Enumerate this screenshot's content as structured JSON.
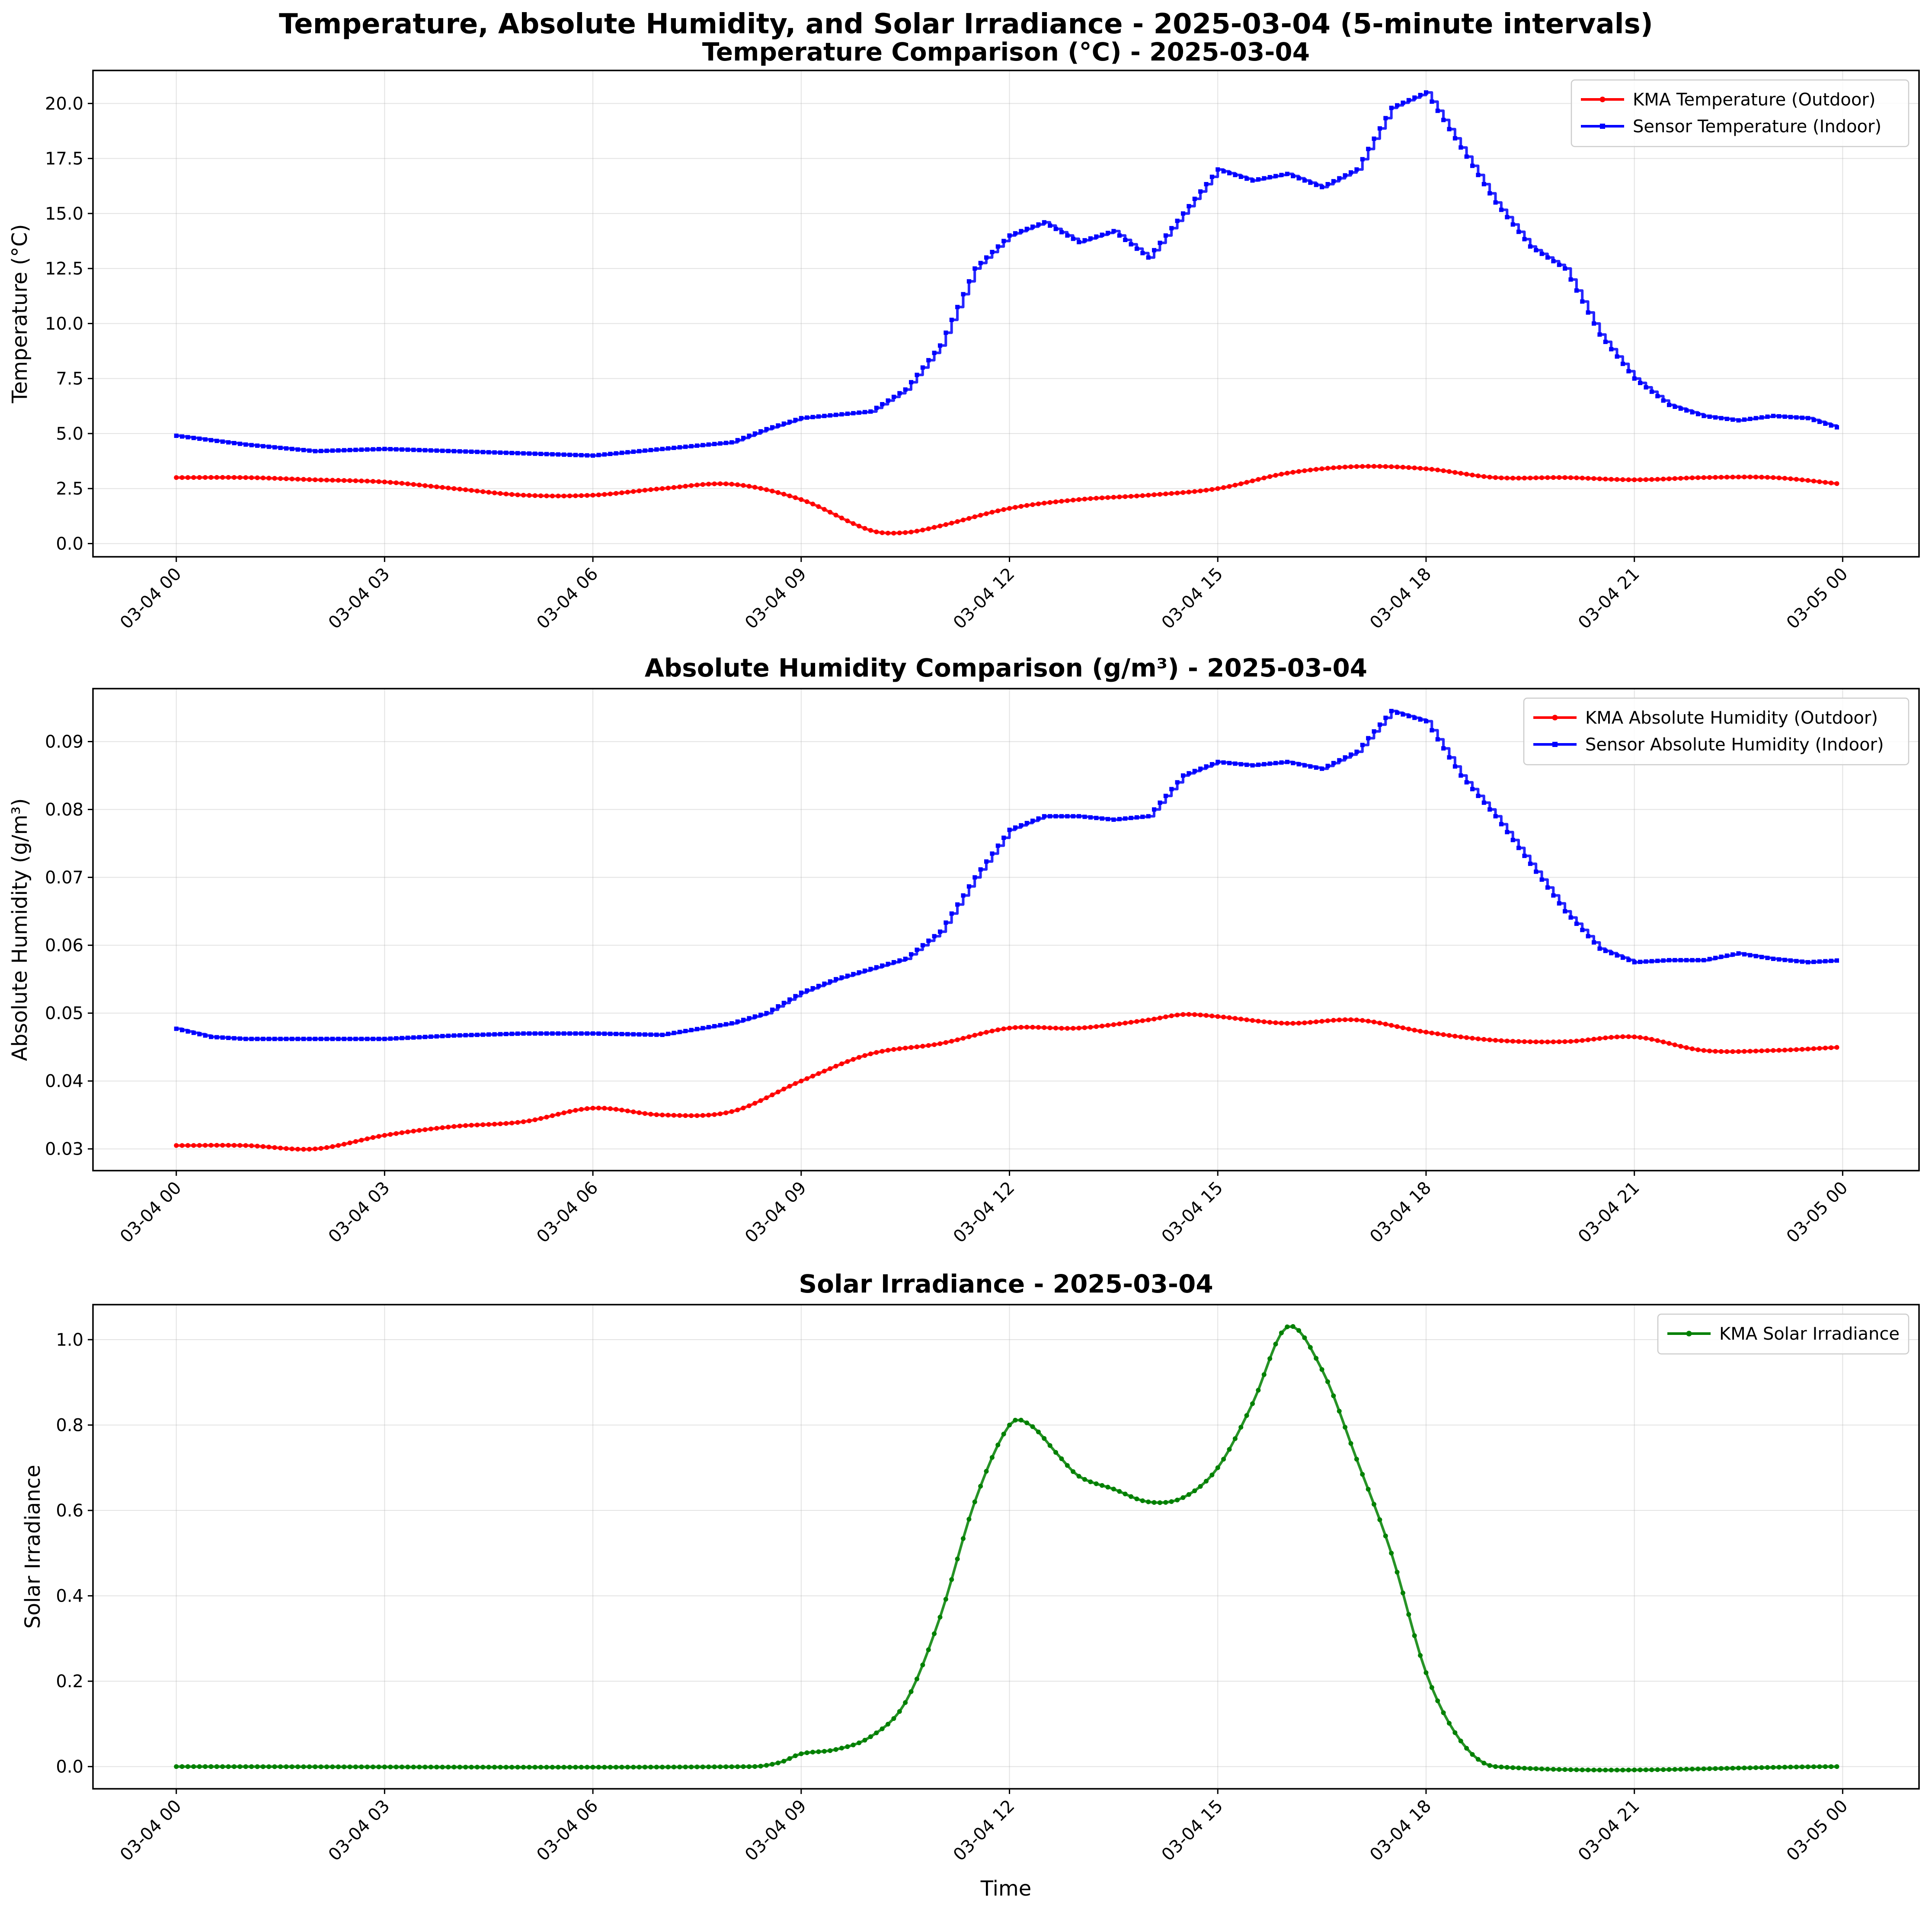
{
  "figure": {
    "title": "Temperature, Absolute Humidity, and Solar Irradiance - 2025-03-04 (5-minute intervals)"
  },
  "chart_data": [
    {
      "type": "line",
      "title": "Temperature Comparison (°C) - 2025-03-04",
      "xlabel": "",
      "ylabel": "Temperature (°C)",
      "x_unit": "hours",
      "x_tick_labels": [
        "03-04 00",
        "03-04 03",
        "03-04 06",
        "03-04 09",
        "03-04 12",
        "03-04 15",
        "03-04 18",
        "03-04 21",
        "03-05 00"
      ],
      "x_ticks": [
        0,
        3,
        6,
        9,
        12,
        15,
        18,
        21,
        24
      ],
      "xlim": [
        -1.2,
        25.1
      ],
      "ylim": [
        -0.6,
        21.5
      ],
      "y_ticks": [
        0.0,
        2.5,
        5.0,
        7.5,
        10.0,
        12.5,
        15.0,
        17.5,
        20.0
      ],
      "y_tick_labels": [
        "0.0",
        "2.5",
        "5.0",
        "7.5",
        "10.0",
        "12.5",
        "15.0",
        "17.5",
        "20.0"
      ],
      "grid": true,
      "legend_position": "top-right",
      "series": [
        {
          "name": "KMA Temperature (Outdoor)",
          "color": "#ff0000",
          "marker": "circle",
          "interpolation": "smooth",
          "points": [
            [
              0,
              3.0
            ],
            [
              1,
              3.0
            ],
            [
              2,
              2.9
            ],
            [
              3,
              2.8
            ],
            [
              4,
              2.5
            ],
            [
              5,
              2.2
            ],
            [
              6,
              2.2
            ],
            [
              7,
              2.5
            ],
            [
              8,
              2.7
            ],
            [
              9,
              2.0
            ],
            [
              10,
              0.6
            ],
            [
              10.5,
              0.5
            ],
            [
              11,
              0.8
            ],
            [
              12,
              1.6
            ],
            [
              13,
              2.0
            ],
            [
              14,
              2.2
            ],
            [
              15,
              2.5
            ],
            [
              16,
              3.2
            ],
            [
              17,
              3.5
            ],
            [
              18,
              3.4
            ],
            [
              19,
              3.0
            ],
            [
              20,
              3.0
            ],
            [
              21,
              2.9
            ],
            [
              22,
              3.0
            ],
            [
              23,
              3.0
            ],
            [
              24,
              2.7
            ]
          ]
        },
        {
          "name": "Sensor Temperature (Indoor)",
          "color": "#0000ff",
          "marker": "square",
          "interpolation": "step",
          "points": [
            [
              0,
              4.9
            ],
            [
              0.5,
              4.7
            ],
            [
              1,
              4.5
            ],
            [
              2,
              4.2
            ],
            [
              3,
              4.3
            ],
            [
              4,
              4.2
            ],
            [
              5,
              4.1
            ],
            [
              6,
              4.0
            ],
            [
              7,
              4.3
            ],
            [
              8,
              4.6
            ],
            [
              8.5,
              5.2
            ],
            [
              9,
              5.7
            ],
            [
              10,
              6.0
            ],
            [
              10.5,
              7.0
            ],
            [
              11,
              9.0
            ],
            [
              11.5,
              12.5
            ],
            [
              12,
              14.0
            ],
            [
              12.5,
              14.6
            ],
            [
              13,
              13.7
            ],
            [
              13.5,
              14.2
            ],
            [
              14,
              13.0
            ],
            [
              14.5,
              15.0
            ],
            [
              15,
              17.0
            ],
            [
              15.5,
              16.5
            ],
            [
              16,
              16.8
            ],
            [
              16.5,
              16.2
            ],
            [
              17,
              17.0
            ],
            [
              17.5,
              19.8
            ],
            [
              18,
              20.5
            ],
            [
              18.5,
              18.0
            ],
            [
              19,
              15.5
            ],
            [
              19.5,
              13.5
            ],
            [
              20,
              12.5
            ],
            [
              20.5,
              9.5
            ],
            [
              21,
              7.5
            ],
            [
              21.5,
              6.3
            ],
            [
              22,
              5.8
            ],
            [
              22.5,
              5.6
            ],
            [
              23,
              5.8
            ],
            [
              23.5,
              5.7
            ],
            [
              24,
              5.2
            ]
          ]
        }
      ]
    },
    {
      "type": "line",
      "title": "Absolute Humidity Comparison (g/m³) - 2025-03-04",
      "xlabel": "",
      "ylabel": "Absolute Humidity (g/m³)",
      "x_unit": "hours",
      "x_tick_labels": [
        "03-04 00",
        "03-04 03",
        "03-04 06",
        "03-04 09",
        "03-04 12",
        "03-04 15",
        "03-04 18",
        "03-04 21",
        "03-05 00"
      ],
      "x_ticks": [
        0,
        3,
        6,
        9,
        12,
        15,
        18,
        21,
        24
      ],
      "xlim": [
        -1.2,
        25.1
      ],
      "ylim": [
        0.0268,
        0.0978
      ],
      "y_ticks": [
        0.03,
        0.04,
        0.05,
        0.06,
        0.07,
        0.08,
        0.09
      ],
      "y_tick_labels": [
        "0.03",
        "0.04",
        "0.05",
        "0.06",
        "0.07",
        "0.08",
        "0.09"
      ],
      "grid": true,
      "legend_position": "top-right",
      "series": [
        {
          "name": "KMA Absolute Humidity (Outdoor)",
          "color": "#ff0000",
          "marker": "circle",
          "interpolation": "smooth",
          "points": [
            [
              0,
              0.0305
            ],
            [
              1,
              0.0305
            ],
            [
              2,
              0.03
            ],
            [
              3,
              0.032
            ],
            [
              4,
              0.0333
            ],
            [
              5,
              0.034
            ],
            [
              6,
              0.036
            ],
            [
              7,
              0.035
            ],
            [
              8,
              0.0355
            ],
            [
              9,
              0.04
            ],
            [
              10,
              0.044
            ],
            [
              11,
              0.0455
            ],
            [
              12,
              0.0478
            ],
            [
              13,
              0.0478
            ],
            [
              14,
              0.049
            ],
            [
              14.5,
              0.0498
            ],
            [
              15,
              0.0495
            ],
            [
              16,
              0.0485
            ],
            [
              17,
              0.049
            ],
            [
              18,
              0.0472
            ],
            [
              19,
              0.046
            ],
            [
              20,
              0.0458
            ],
            [
              21,
              0.0465
            ],
            [
              22,
              0.0445
            ],
            [
              23,
              0.0445
            ],
            [
              24,
              0.045
            ]
          ]
        },
        {
          "name": "Sensor Absolute Humidity (Indoor)",
          "color": "#0000ff",
          "marker": "square",
          "interpolation": "step",
          "points": [
            [
              0,
              0.0477
            ],
            [
              0.5,
              0.0465
            ],
            [
              1,
              0.0462
            ],
            [
              2,
              0.0462
            ],
            [
              3,
              0.0462
            ],
            [
              4,
              0.0467
            ],
            [
              5,
              0.047
            ],
            [
              6,
              0.047
            ],
            [
              7,
              0.0468
            ],
            [
              8,
              0.0485
            ],
            [
              8.5,
              0.05
            ],
            [
              9,
              0.053
            ],
            [
              9.5,
              0.055
            ],
            [
              10,
              0.0565
            ],
            [
              10.5,
              0.058
            ],
            [
              11,
              0.062
            ],
            [
              11.5,
              0.07
            ],
            [
              12,
              0.077
            ],
            [
              12.5,
              0.079
            ],
            [
              13,
              0.079
            ],
            [
              13.5,
              0.0785
            ],
            [
              14,
              0.079
            ],
            [
              14.5,
              0.085
            ],
            [
              15,
              0.087
            ],
            [
              15.5,
              0.0865
            ],
            [
              16,
              0.087
            ],
            [
              16.5,
              0.086
            ],
            [
              17,
              0.0885
            ],
            [
              17.5,
              0.0945
            ],
            [
              18,
              0.093
            ],
            [
              18.5,
              0.085
            ],
            [
              19,
              0.079
            ],
            [
              19.5,
              0.072
            ],
            [
              20,
              0.065
            ],
            [
              20.5,
              0.0595
            ],
            [
              21,
              0.0575
            ],
            [
              21.5,
              0.0578
            ],
            [
              22,
              0.0578
            ],
            [
              22.5,
              0.0588
            ],
            [
              23,
              0.058
            ],
            [
              23.5,
              0.0575
            ],
            [
              24,
              0.0578
            ]
          ]
        }
      ]
    },
    {
      "type": "line",
      "title": "Solar Irradiance - 2025-03-04",
      "xlabel": "Time",
      "ylabel": "Solar Irradiance",
      "x_unit": "hours",
      "x_tick_labels": [
        "03-04 00",
        "03-04 03",
        "03-04 06",
        "03-04 09",
        "03-04 12",
        "03-04 15",
        "03-04 18",
        "03-04 21",
        "03-05 00"
      ],
      "x_ticks": [
        0,
        3,
        6,
        9,
        12,
        15,
        18,
        21,
        24
      ],
      "xlim": [
        -1.2,
        25.1
      ],
      "ylim": [
        -0.052,
        1.082
      ],
      "y_ticks": [
        0.0,
        0.2,
        0.4,
        0.6,
        0.8,
        1.0
      ],
      "y_tick_labels": [
        "0.0",
        "0.2",
        "0.4",
        "0.6",
        "0.8",
        "1.0"
      ],
      "grid": true,
      "legend_position": "top-right",
      "series": [
        {
          "name": "KMA Solar Irradiance",
          "color": "#008000",
          "marker": "circle",
          "interpolation": "smooth",
          "points": [
            [
              0,
              0
            ],
            [
              8.3,
              0
            ],
            [
              8.7,
              0.01
            ],
            [
              9,
              0.03
            ],
            [
              9.5,
              0.04
            ],
            [
              10,
              0.07
            ],
            [
              10.5,
              0.15
            ],
            [
              11,
              0.35
            ],
            [
              11.5,
              0.62
            ],
            [
              12,
              0.8
            ],
            [
              12.3,
              0.8
            ],
            [
              12.7,
              0.73
            ],
            [
              13,
              0.68
            ],
            [
              13.5,
              0.65
            ],
            [
              14,
              0.62
            ],
            [
              14.5,
              0.63
            ],
            [
              15,
              0.7
            ],
            [
              15.5,
              0.85
            ],
            [
              16,
              1.03
            ],
            [
              16.5,
              0.93
            ],
            [
              17,
              0.72
            ],
            [
              17.5,
              0.5
            ],
            [
              18,
              0.22
            ],
            [
              18.5,
              0.06
            ],
            [
              19,
              0.0
            ],
            [
              24,
              0
            ]
          ]
        }
      ]
    }
  ]
}
